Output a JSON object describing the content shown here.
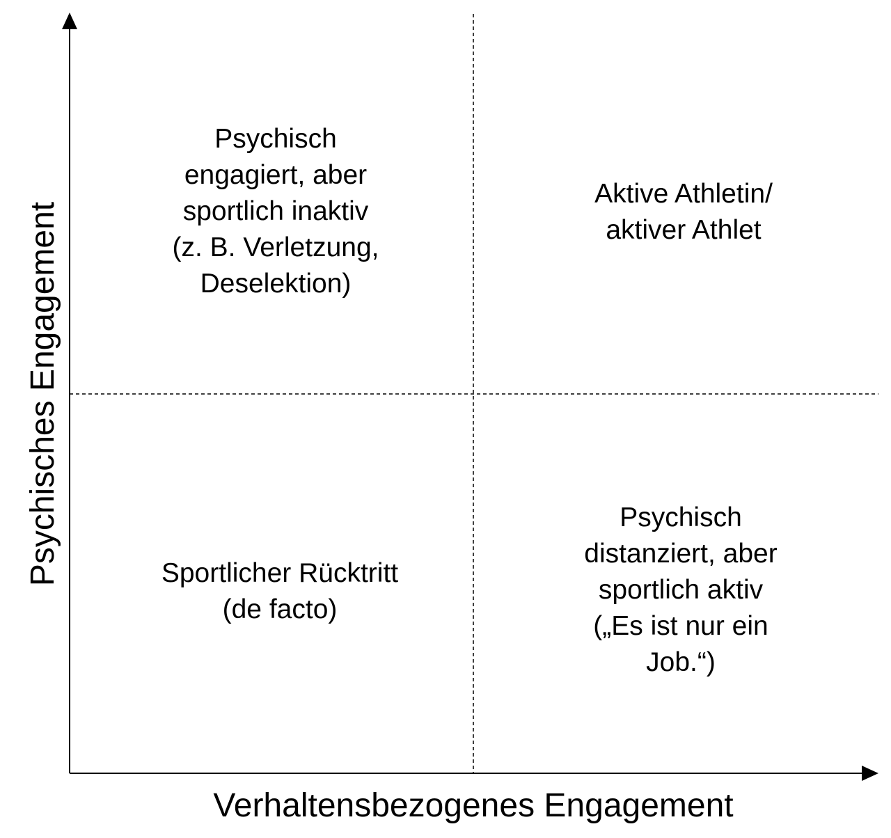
{
  "diagram": {
    "axes": {
      "x_label": "Verhaltensbezogenes Engagement",
      "y_label": "Psychisches Engagement"
    },
    "quadrants": {
      "top_left": "Psychisch\nengagiert, aber\nsportlich inaktiv\n(z. B. Verletzung,\nDeselektion)",
      "top_right": "Aktive Athletin/\naktiver Athlet",
      "bottom_left": "Sportlicher Rücktritt\n(de facto)",
      "bottom_right": "Psychisch\ndistanziert, aber\nsportlich aktiv\n(„Es ist nur ein\nJob.“)"
    },
    "divider_style": "dashed"
  }
}
